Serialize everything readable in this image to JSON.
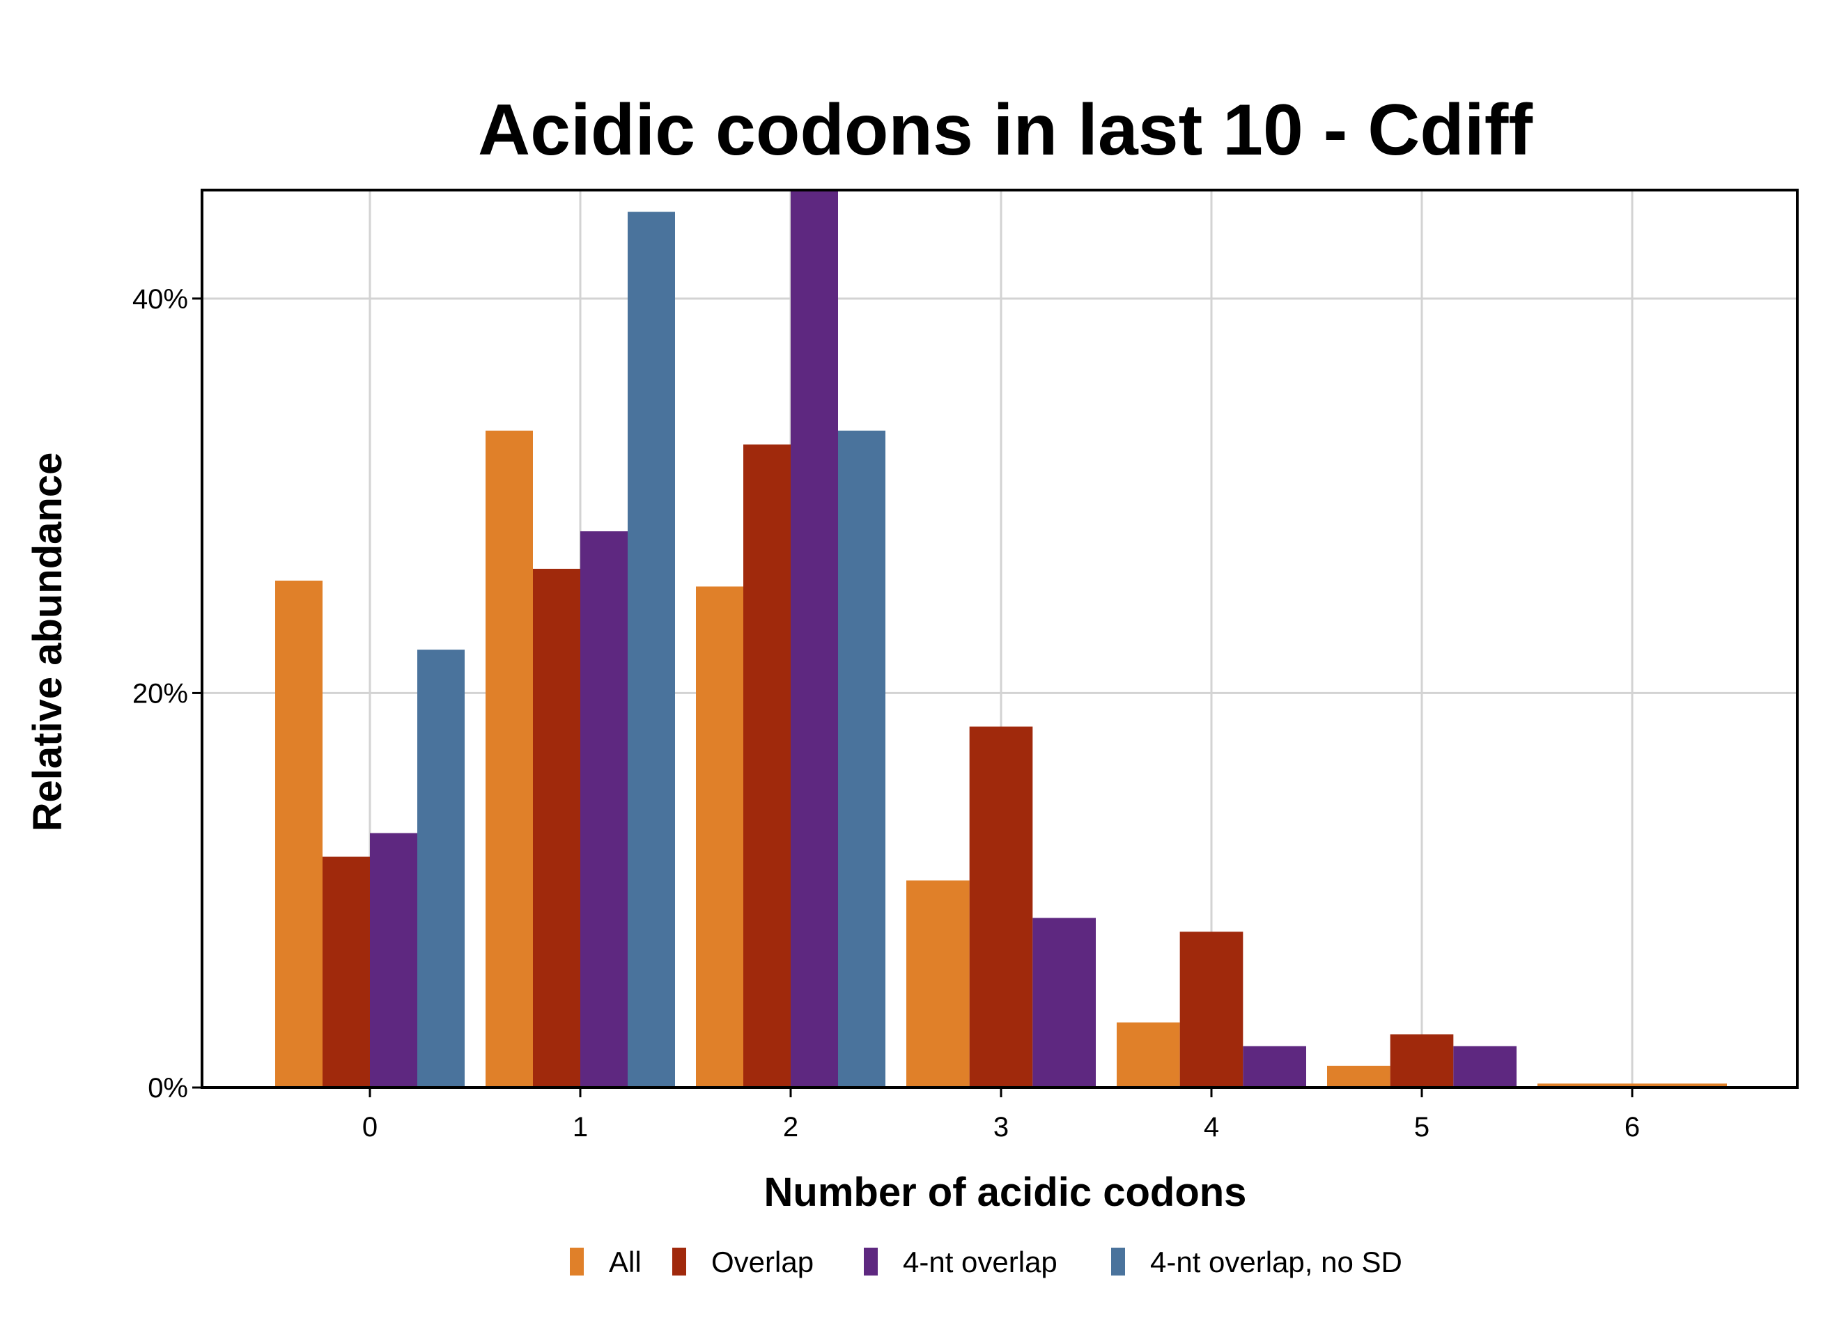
{
  "chart_data": {
    "type": "bar",
    "title": "Acidic codons in last 10 - Cdiff",
    "xlabel": "Number of acidic codons",
    "ylabel": "Relative abundance",
    "categories": [
      "0",
      "1",
      "2",
      "3",
      "4",
      "5",
      "6"
    ],
    "ylim": [
      0,
      0.455
    ],
    "yticks": [
      0,
      0.2,
      0.4
    ],
    "ytick_labels": [
      "0%",
      "20%",
      "40%"
    ],
    "grid": true,
    "legend_position": "bottom",
    "series": [
      {
        "name": "All",
        "color": "#E08029",
        "values": [
          0.257,
          0.333,
          0.254,
          0.105,
          0.033,
          0.011,
          0.002
        ]
      },
      {
        "name": "Overlap",
        "color": "#A0290C",
        "values": [
          0.117,
          0.263,
          0.326,
          0.183,
          0.079,
          0.027,
          0.0
        ]
      },
      {
        "name": "4-nt overlap",
        "color": "#5E2880",
        "values": [
          0.129,
          0.282,
          0.455,
          0.086,
          0.021,
          0.021,
          0.0
        ]
      },
      {
        "name": "4-nt overlap, no SD",
        "color": "#4A739C",
        "values": [
          0.222,
          0.444,
          0.333,
          0.0,
          0.0,
          0.0,
          0.0
        ]
      }
    ]
  }
}
